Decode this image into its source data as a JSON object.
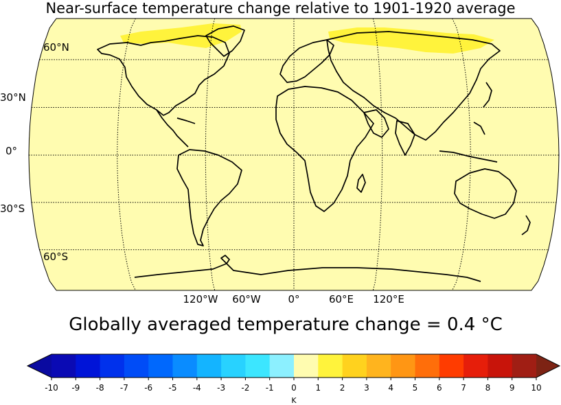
{
  "title": "Near-surface temperature change relative to 1901-1920 average",
  "map": {
    "projection": "Robinson",
    "background_color": "#fffcb0",
    "lat_labels": [
      "60°N",
      "30°N",
      "0°",
      "30°S",
      "60°S"
    ],
    "lon_labels": [
      "120°W",
      "60°W",
      "0°",
      "60°E",
      "120°E"
    ],
    "warm_region_color": "#fff33c",
    "warm_region_value": "1 to 2 K",
    "warm_regions": [
      "northern Canada and Greenland",
      "northern Siberia"
    ]
  },
  "global_average": {
    "label": "Globally averaged temperature change = 0.4 °C",
    "value": 0.4,
    "unit": "°C"
  },
  "colorbar": {
    "unit": "K",
    "ticks": [
      "-10",
      "-9",
      "-8",
      "-7",
      "-6",
      "-5",
      "-4",
      "-3",
      "-2",
      "-1",
      "0",
      "1",
      "2",
      "3",
      "4",
      "5",
      "6",
      "7",
      "8",
      "9",
      "10"
    ],
    "colors": [
      "#0a0ab4",
      "#0014d8",
      "#0031ec",
      "#004cf7",
      "#0068fd",
      "#0a8cff",
      "#14b4ff",
      "#28d2ff",
      "#3ce6ff",
      "#8cf0ff",
      "#fffcb0",
      "#fff33c",
      "#ffd21e",
      "#ffb41e",
      "#ff9614",
      "#ff6e0a",
      "#ff3c00",
      "#e61e0a",
      "#c8140a",
      "#a01e14"
    ],
    "under_color": "#0a0aa0",
    "over_color": "#7d2314"
  }
}
